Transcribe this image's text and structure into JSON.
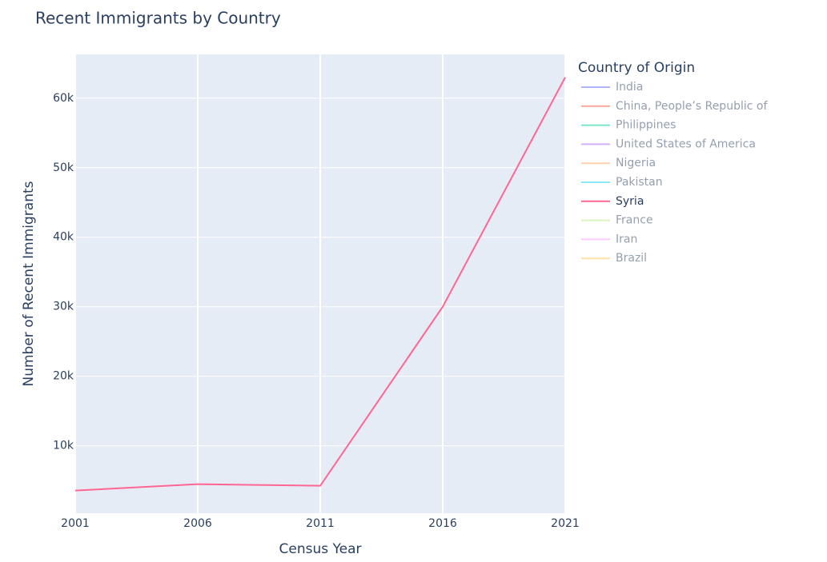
{
  "chart_data": {
    "type": "line",
    "title": "Recent Immigrants by Country",
    "xlabel": "Census Year",
    "ylabel": "Number of Recent Immigrants",
    "legend_title": "Country of Origin",
    "legend": "right",
    "x": [
      2001,
      2006,
      2011,
      2016,
      2021
    ],
    "xlim": [
      2001,
      2021
    ],
    "xticks": [
      2001,
      2006,
      2011,
      2016,
      2021
    ],
    "ylim": [
      300,
      66300
    ],
    "yticks": [
      {
        "value": 10000,
        "label": "10k"
      },
      {
        "value": 20000,
        "label": "20k"
      },
      {
        "value": 30000,
        "label": "30k"
      },
      {
        "value": 40000,
        "label": "40k"
      },
      {
        "value": 50000,
        "label": "50k"
      },
      {
        "value": 60000,
        "label": "60k"
      }
    ],
    "grid": true,
    "series": [
      {
        "name": "India",
        "color": "#636efa",
        "visible": "legendonly",
        "values": [
          null,
          null,
          null,
          null,
          null
        ]
      },
      {
        "name": "China, People’s Republic of",
        "color": "#EF553B",
        "visible": "legendonly",
        "values": [
          null,
          null,
          null,
          null,
          null
        ]
      },
      {
        "name": "Philippines",
        "color": "#00cc96",
        "visible": "legendonly",
        "values": [
          null,
          null,
          null,
          null,
          null
        ]
      },
      {
        "name": "United States of America",
        "color": "#ab63fa",
        "visible": "legendonly",
        "values": [
          null,
          null,
          null,
          null,
          null
        ]
      },
      {
        "name": "Nigeria",
        "color": "#FFA15A",
        "visible": "legendonly",
        "values": [
          null,
          null,
          null,
          null,
          null
        ]
      },
      {
        "name": "Pakistan",
        "color": "#19d3f3",
        "visible": "legendonly",
        "values": [
          null,
          null,
          null,
          null,
          null
        ]
      },
      {
        "name": "Syria",
        "color": "#FF6692",
        "visible": true,
        "values": [
          3560,
          4480,
          4250,
          30000,
          63000
        ]
      },
      {
        "name": "France",
        "color": "#B6E880",
        "visible": "legendonly",
        "values": [
          null,
          null,
          null,
          null,
          null
        ]
      },
      {
        "name": "Iran",
        "color": "#FF97FF",
        "visible": "legendonly",
        "values": [
          null,
          null,
          null,
          null,
          null
        ]
      },
      {
        "name": "Brazil",
        "color": "#FECB52",
        "visible": "legendonly",
        "values": [
          null,
          null,
          null,
          null,
          null
        ]
      }
    ]
  }
}
